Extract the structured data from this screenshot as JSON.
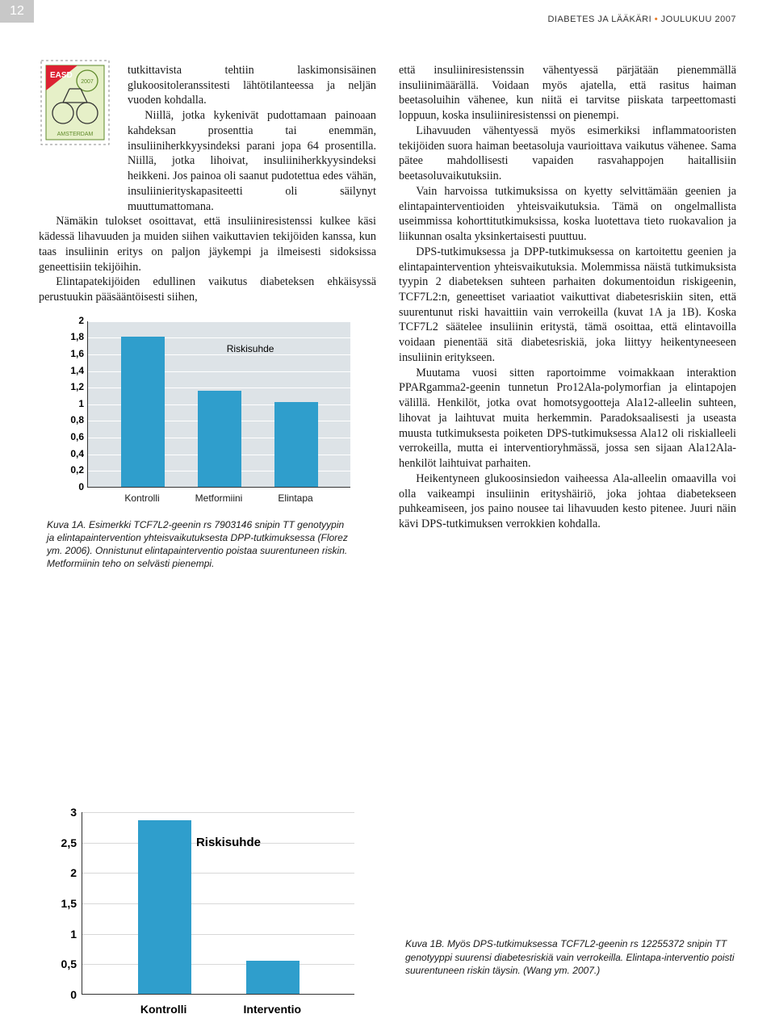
{
  "page_number": "12",
  "header": {
    "journal": "DIABETES JA LÄÄKÄRI",
    "issue": "JOULUKUU 2007"
  },
  "left": {
    "p1": "tutkittavista tehtiin laskimonsisäinen glukoositoleranssitesti lähtötilanteessa ja neljän vuoden kohdalla.",
    "p2": "Niillä, jotka kykenivät pudottamaan painoaan kahdeksan prosenttia tai enemmän, insuliiniherkkyysindeksi parani jopa 64 prosentilla. Niillä, jotka lihoivat, insuliiniherkkyysindeksi heikkeni. Jos painoa oli saanut pudotettua edes vähän, insuliinierityskapasiteetti oli säilynyt muuttumattomana.",
    "p3": "Nämäkin tulokset osoittavat, että insuliiniresistenssi kulkee käsi kädessä lihavuuden ja muiden siihen vaikuttavien tekijöiden kanssa, kun taas insuliinin eritys on paljon jäykempi ja ilmeisesti sidoksissa geneettisiin tekijöihin.",
    "p4": "Elintapatekijöiden edullinen vaikutus diabeteksen ehkäisyssä perustuukin pääsääntöisesti siihen,"
  },
  "right": {
    "p1": "että insuliiniresistenssin vähentyessä pärjätään pienemmällä insuliinimäärällä. Voidaan myös ajatella, että rasitus haiman beetasoluihin vähenee, kun niitä ei tarvitse piiskata tarpeettomasti loppuun, koska insuliiniresistenssi on pienempi.",
    "p2": "Lihavuuden vähentyessä myös esimerkiksi inflammatooristen tekijöiden suora haiman beetasoluja vaurioittava vaikutus vähenee. Sama pätee mahdollisesti vapaiden rasvahappojen haitallisiin beetasoluvaikutuksiin.",
    "p3": "Vain harvoissa tutkimuksissa on kyetty selvittämään geenien ja elintapainterventioiden yhteisvaikutuksia. Tämä on ongelmallista useimmissa kohorttitutkimuksissa, koska luotettava tieto ruokavalion ja liikunnan osalta yksinkertaisesti puuttuu.",
    "p4": "DPS-tutkimuksessa ja DPP-tutkimuksessa on kartoitettu geenien ja elintapaintervention yhteisvaikutuksia. Molemmissa näistä tutkimuksista tyypin 2 diabeteksen suhteen parhaiten dokumentoidun riskigeenin, TCF7L2:n, geneettiset variaatiot vaikuttivat diabetesriskiin siten, että suurentunut riski havaittiin vain verrokeilla (kuvat 1A ja 1B). Koska TCF7L2 säätelee insuliinin eritystä, tämä osoittaa, että elintavoilla voidaan pienentää sitä diabetesriskiä, joka liittyy heikentyneeseen insuliinin eritykseen.",
    "p5": "Muutama vuosi sitten raportoimme voimakkaan interaktion PPARgamma2-geenin tunnetun Pro12Ala-polymorfian ja elintapojen välillä. Henkilöt, jotka ovat homotsygootteja Ala12-alleelin suhteen, lihovat ja laihtuvat muita herkemmin. Paradoksaalisesti ja useasta muusta tutkimuksesta poiketen DPS-tutkimuksessa Ala12 oli riskialleeli verrokeilla, mutta ei interventioryhmässä, jossa sen sijaan Ala12Ala-henkilöt laihtuivat parhaiten.",
    "p6": "Heikentyneen glukoosinsiedon vaiheessa Ala-alleelin omaavilla voi olla vaikeampi insuliinin erityshäiriö, joka johtaa diabetekseen puhkeamiseen, jos paino nousee tai lihavuuden kesto pitenee. Juuri näin kävi DPS-tutkimuksen verrokkien kohdalla."
  },
  "chart1": {
    "type": "bar",
    "label": "Riskisuhde",
    "ylim": [
      0,
      2
    ],
    "yticks": [
      "0",
      "0,2",
      "0,4",
      "0,6",
      "0,8",
      "1",
      "1,2",
      "1,4",
      "1,6",
      "1,8",
      "2"
    ],
    "categories": [
      "Kontrolli",
      "Metformiini",
      "Elintapa"
    ],
    "values": [
      1.8,
      1.15,
      1.02
    ],
    "bar_color": "#2f9ecc",
    "plot_bg": "#dde3e7",
    "grid_color": "#ffffff"
  },
  "caption1": "Kuva 1A. Esimerkki TCF7L2-geenin rs 7903146 snipin TT genotyypin ja elintapaintervention yhteisvaikutuksesta DPP-tutkimuksessa (Florez ym. 2006). Onnistunut elintapainterventio poistaa suurentuneen riskin. Metformiinin teho on selvästi pienempi.",
  "chart2": {
    "type": "bar",
    "label": "Riskisuhde",
    "ylim": [
      0,
      3
    ],
    "yticks": [
      "0",
      "0,5",
      "1",
      "1,5",
      "2",
      "2,5",
      "3"
    ],
    "categories": [
      "Kontrolli",
      "Interventio"
    ],
    "values": [
      2.85,
      0.55
    ],
    "bar_color": "#2f9ecc",
    "plot_bg": "#ffffff",
    "grid_color": "#d8d8d8"
  },
  "caption2": "Kuva 1B. Myös DPS-tutkimuksessa TCF7L2-geenin rs 12255372 snipin TT genotyyppi suurensi diabetesriskiä vain verrokeilla. Elintapa-interventio poisti suurentuneen riskin täysin. (Wang ym. 2007.)"
}
